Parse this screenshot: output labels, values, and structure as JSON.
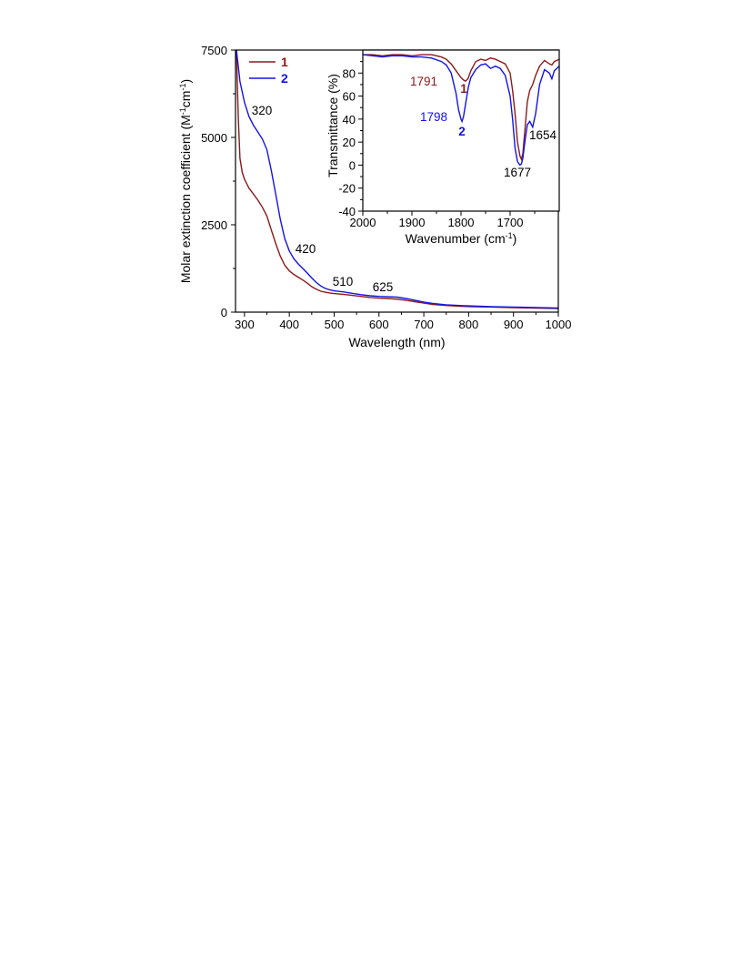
{
  "colors": {
    "series1": "#8b1a1a",
    "series2": "#1414e6",
    "axis": "#000000"
  },
  "chart_data": [
    {
      "type": "line",
      "xlabel": "Wavelength (nm)",
      "ylabel": "Molar extinction coefficient (M⁻¹cm⁻¹)",
      "xlim": [
        280,
        1000
      ],
      "ylim": [
        0,
        7500
      ],
      "xticks": [
        "300",
        "400",
        "500",
        "600",
        "700",
        "800",
        "900",
        "1000"
      ],
      "yticks": [
        "0",
        "2500",
        "5000",
        "7500"
      ],
      "legend_position": "top-left",
      "series": [
        {
          "name": "1",
          "color": "#8b1a1a",
          "x": [
            282,
            286,
            290,
            295,
            300,
            310,
            320,
            330,
            340,
            350,
            360,
            370,
            380,
            390,
            400,
            410,
            420,
            430,
            440,
            450,
            460,
            470,
            480,
            490,
            500,
            520,
            540,
            560,
            580,
            600,
            620,
            640,
            660,
            680,
            700,
            720,
            750,
            780,
            800,
            850,
            900,
            950,
            1000
          ],
          "y": [
            7500,
            5600,
            4400,
            4000,
            3800,
            3550,
            3380,
            3200,
            3000,
            2750,
            2350,
            1950,
            1600,
            1340,
            1180,
            1080,
            1000,
            920,
            830,
            730,
            660,
            600,
            570,
            550,
            530,
            510,
            480,
            450,
            420,
            400,
            390,
            370,
            340,
            300,
            260,
            220,
            190,
            170,
            160,
            145,
            130,
            115,
            105
          ]
        },
        {
          "name": "2",
          "color": "#1414e6",
          "x": [
            282,
            286,
            290,
            295,
            300,
            310,
            320,
            330,
            340,
            350,
            360,
            370,
            380,
            390,
            400,
            410,
            420,
            430,
            440,
            450,
            460,
            470,
            480,
            490,
            500,
            520,
            540,
            560,
            580,
            600,
            620,
            640,
            660,
            680,
            700,
            720,
            750,
            780,
            800,
            850,
            900,
            950,
            1000
          ],
          "y": [
            7500,
            7050,
            6600,
            6300,
            6000,
            5600,
            5350,
            5150,
            4950,
            4650,
            4050,
            3350,
            2650,
            2100,
            1750,
            1530,
            1380,
            1250,
            1120,
            980,
            850,
            750,
            680,
            640,
            610,
            580,
            540,
            500,
            470,
            450,
            440,
            430,
            390,
            340,
            290,
            250,
            210,
            190,
            180,
            160,
            145,
            130,
            120
          ]
        }
      ],
      "annotations": [
        "320",
        "420",
        "510",
        "625"
      ]
    },
    {
      "type": "line",
      "xlabel": "Wavenumber (cm⁻¹)",
      "ylabel": "Transmittance (%)",
      "xlim": [
        2000,
        1600
      ],
      "ylim": [
        -40,
        100
      ],
      "xticks": [
        "2000",
        "1900",
        "1800",
        "1700"
      ],
      "yticks": [
        "-40",
        "-20",
        "0",
        "20",
        "40",
        "60",
        "80"
      ],
      "series": [
        {
          "name": "1",
          "color": "#8b1a1a",
          "x": [
            2000,
            1980,
            1960,
            1940,
            1920,
            1900,
            1880,
            1860,
            1840,
            1830,
            1820,
            1810,
            1800,
            1795,
            1791,
            1786,
            1780,
            1770,
            1760,
            1750,
            1740,
            1730,
            1720,
            1710,
            1700,
            1695,
            1690,
            1685,
            1680,
            1677,
            1674,
            1670,
            1665,
            1660,
            1654,
            1648,
            1640,
            1630,
            1620,
            1615,
            1610,
            1605,
            1600
          ],
          "y": [
            96,
            96,
            95,
            96,
            96,
            95,
            96,
            96,
            94,
            92,
            88,
            82,
            76,
            74,
            73,
            75,
            82,
            90,
            92,
            91,
            93,
            92,
            90,
            88,
            80,
            65,
            45,
            20,
            8,
            5,
            10,
            30,
            55,
            65,
            70,
            78,
            86,
            91,
            88,
            87,
            90,
            91,
            92
          ]
        },
        {
          "name": "2",
          "color": "#1414e6",
          "x": [
            2000,
            1980,
            1960,
            1940,
            1920,
            1900,
            1880,
            1860,
            1840,
            1830,
            1820,
            1810,
            1805,
            1800,
            1798,
            1795,
            1790,
            1785,
            1780,
            1770,
            1760,
            1750,
            1740,
            1730,
            1720,
            1710,
            1700,
            1695,
            1690,
            1685,
            1680,
            1677,
            1674,
            1670,
            1665,
            1660,
            1654,
            1648,
            1640,
            1630,
            1620,
            1615,
            1610,
            1605,
            1600
          ],
          "y": [
            96,
            95,
            94,
            95,
            95,
            94,
            94,
            93,
            90,
            87,
            80,
            62,
            48,
            40,
            38,
            42,
            55,
            68,
            76,
            83,
            87,
            88,
            84,
            86,
            84,
            78,
            60,
            40,
            15,
            3,
            0,
            1,
            6,
            20,
            35,
            38,
            33,
            45,
            70,
            83,
            80,
            75,
            82,
            84,
            86
          ]
        }
      ],
      "annotations": [
        {
          "text": "1791",
          "color": "#8b1a1a"
        },
        {
          "text": "1",
          "color": "#8b1a1a"
        },
        {
          "text": "1798",
          "color": "#1414e6"
        },
        {
          "text": "2",
          "color": "#1414e6"
        },
        {
          "text": "1677",
          "color": "#000000"
        },
        {
          "text": "1654",
          "color": "#000000"
        }
      ]
    }
  ]
}
